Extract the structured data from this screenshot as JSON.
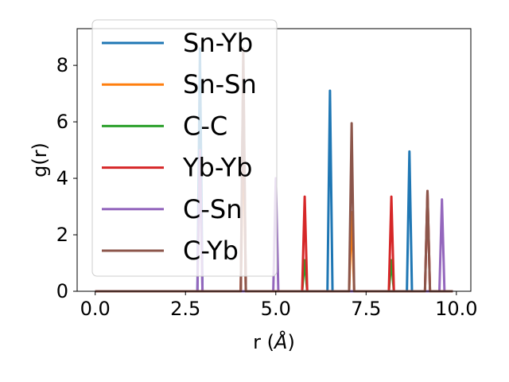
{
  "chart_data": {
    "type": "line",
    "xlabel": "r (",
    "xlabel_unit": "Å",
    "xlabel_close": ")",
    "ylabel": "g(r)",
    "xlim": [
      -0.5,
      10.4
    ],
    "ylim": [
      0,
      9.3
    ],
    "xticks": [
      0.0,
      2.5,
      5.0,
      7.5,
      10.0
    ],
    "xtick_labels": [
      "0.0",
      "2.5",
      "5.0",
      "7.5",
      "10.0"
    ],
    "yticks": [
      0,
      2,
      4,
      6,
      8
    ],
    "ytick_labels": [
      "0",
      "2",
      "4",
      "6",
      "8"
    ],
    "x_range": [
      0.0,
      9.9
    ],
    "legend_position": "top-left",
    "series": [
      {
        "name": "Sn-Yb",
        "color": "#1f77b4",
        "peaks": [
          [
            2.9,
            8.6
          ],
          [
            6.5,
            7.1
          ],
          [
            8.7,
            4.95
          ]
        ]
      },
      {
        "name": "Sn-Sn",
        "color": "#ff7f0e",
        "peaks": [
          [
            4.1,
            6.2
          ],
          [
            7.1,
            2.8
          ]
        ]
      },
      {
        "name": "C-C",
        "color": "#2ca02c",
        "peaks": [
          [
            5.8,
            1.1
          ],
          [
            8.2,
            1.1
          ]
        ]
      },
      {
        "name": "Yb-Yb",
        "color": "#d62728",
        "peaks": [
          [
            4.1,
            8.0
          ],
          [
            5.8,
            3.35
          ],
          [
            8.2,
            3.35
          ],
          [
            9.2,
            3.55
          ]
        ]
      },
      {
        "name": "C-Sn",
        "color": "#9467bd",
        "peaks": [
          [
            2.9,
            5.0
          ],
          [
            5.0,
            4.0
          ],
          [
            9.6,
            3.25
          ]
        ]
      },
      {
        "name": "C-Yb",
        "color": "#8c564b",
        "peaks": [
          [
            4.1,
            8.6
          ],
          [
            7.1,
            5.95
          ],
          [
            9.2,
            3.55
          ]
        ]
      }
    ]
  }
}
